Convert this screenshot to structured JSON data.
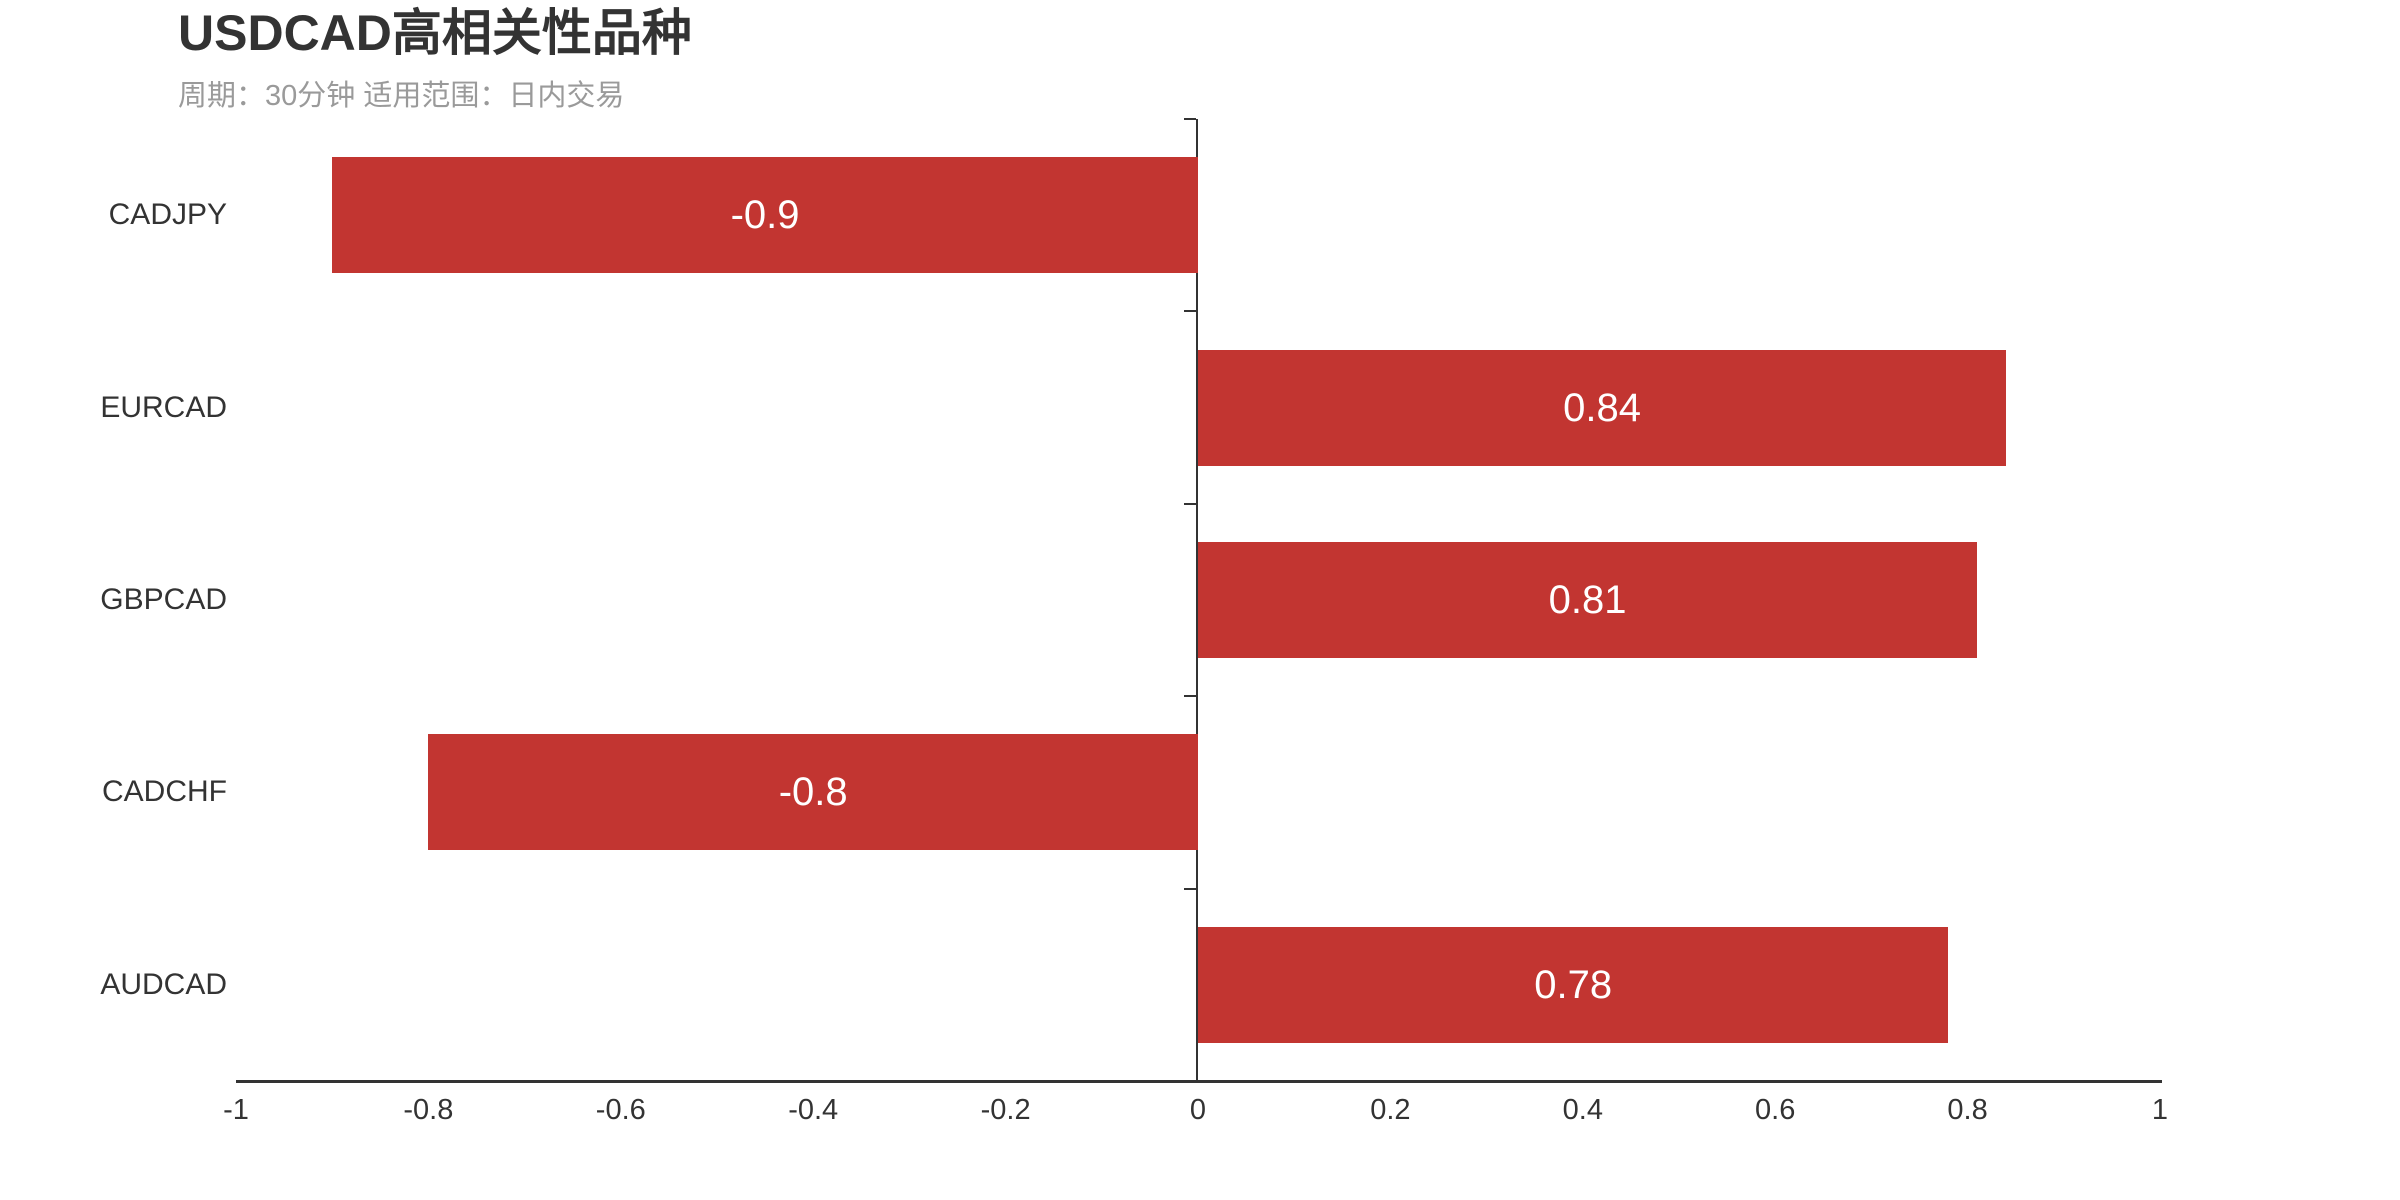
{
  "header": {
    "title": "USDCAD高相关性品种",
    "subtitle": "周期：30分钟 适用范围：日内交易"
  },
  "chart_data": {
    "type": "bar",
    "orientation": "horizontal",
    "title": "USDCAD高相关性品种",
    "subtitle": "周期：30分钟 适用范围：日内交易",
    "categories": [
      "CADJPY",
      "EURCAD",
      "GBPCAD",
      "CADCHF",
      "AUDCAD"
    ],
    "values": [
      -0.9,
      0.84,
      0.81,
      -0.8,
      0.78
    ],
    "value_labels": [
      "-0.9",
      "0.84",
      "0.81",
      "-0.8",
      "0.78"
    ],
    "xlabel": "",
    "ylabel": "",
    "xlim": [
      -1,
      1
    ],
    "x_ticks": [
      -1,
      -0.8,
      -0.6,
      -0.4,
      -0.2,
      0,
      0.2,
      0.4,
      0.6,
      0.8,
      1
    ],
    "x_tick_labels": [
      "-1",
      "-0.8",
      "-0.6",
      "-0.4",
      "-0.2",
      "0",
      "0.2",
      "0.4",
      "0.6",
      "0.8",
      "1"
    ],
    "grid": false,
    "legend": false,
    "value_label_position": "inside-center",
    "colors": {
      "bar": "#c23531",
      "axis": "#333333",
      "title": "#333333",
      "subtitle": "#9a9a9a",
      "value_label": "#ffffff",
      "tick_label": "#333333",
      "category_label": "#333333",
      "background": "#ffffff"
    }
  }
}
